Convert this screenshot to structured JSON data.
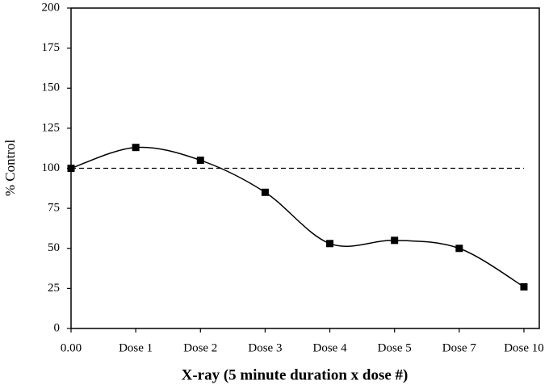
{
  "chart_data": {
    "type": "line",
    "x_label": "X-ray (5 minute duration x dose #)",
    "y_label": "% Control",
    "categories": [
      "0.00",
      "Dose 1",
      "Dose 2",
      "Dose 3",
      "Dose 4",
      "Dose 5",
      "Dose 7",
      "Dose 10"
    ],
    "values": [
      100,
      113,
      105,
      85,
      53,
      55,
      50,
      26
    ],
    "color": "#000000",
    "reference_line": 100,
    "ylim": [
      0,
      200
    ],
    "yticks": [
      0,
      25,
      50,
      75,
      100,
      125,
      150,
      175,
      200
    ],
    "grid": false
  }
}
